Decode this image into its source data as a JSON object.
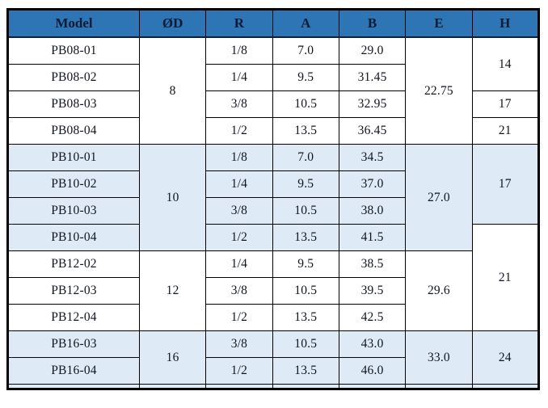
{
  "table": {
    "headers": [
      "Model",
      "ØD",
      "R",
      "A",
      "B",
      "E",
      "H"
    ],
    "column_keys": [
      "model",
      "od",
      "r",
      "a",
      "b",
      "e",
      "h"
    ],
    "rows": [
      {
        "theme": "white",
        "cells": [
          {
            "col": "model",
            "text": "PB08-01"
          },
          {
            "col": "od",
            "text": "8",
            "rowspan": 4
          },
          {
            "col": "r",
            "text": "1/8"
          },
          {
            "col": "a",
            "text": "7.0"
          },
          {
            "col": "b",
            "text": "29.0"
          },
          {
            "col": "e",
            "text": "22.75",
            "rowspan": 4
          },
          {
            "col": "h",
            "text": "14",
            "rowspan": 2
          }
        ]
      },
      {
        "theme": "white",
        "cells": [
          {
            "col": "model",
            "text": "PB08-02"
          },
          {
            "col": "r",
            "text": "1/4"
          },
          {
            "col": "a",
            "text": "9.5"
          },
          {
            "col": "b",
            "text": "31.45"
          }
        ]
      },
      {
        "theme": "white",
        "cells": [
          {
            "col": "model",
            "text": "PB08-03"
          },
          {
            "col": "r",
            "text": "3/8"
          },
          {
            "col": "a",
            "text": "10.5"
          },
          {
            "col": "b",
            "text": "32.95"
          },
          {
            "col": "h",
            "text": "17"
          }
        ]
      },
      {
        "theme": "white",
        "cells": [
          {
            "col": "model",
            "text": "PB08-04"
          },
          {
            "col": "r",
            "text": "1/2"
          },
          {
            "col": "a",
            "text": "13.5"
          },
          {
            "col": "b",
            "text": "36.45"
          },
          {
            "col": "h",
            "text": "21"
          }
        ]
      },
      {
        "theme": "blue",
        "cells": [
          {
            "col": "model",
            "text": "PB10-01"
          },
          {
            "col": "od",
            "text": "10",
            "rowspan": 4
          },
          {
            "col": "r",
            "text": "1/8"
          },
          {
            "col": "a",
            "text": "7.0"
          },
          {
            "col": "b",
            "text": "34.5"
          },
          {
            "col": "e",
            "text": "27.0",
            "rowspan": 4
          },
          {
            "col": "h",
            "text": "17",
            "rowspan": 3
          }
        ]
      },
      {
        "theme": "blue",
        "cells": [
          {
            "col": "model",
            "text": "PB10-02"
          },
          {
            "col": "r",
            "text": "1/4"
          },
          {
            "col": "a",
            "text": "9.5"
          },
          {
            "col": "b",
            "text": "37.0"
          }
        ]
      },
      {
        "theme": "blue",
        "cells": [
          {
            "col": "model",
            "text": "PB10-03"
          },
          {
            "col": "r",
            "text": "3/8"
          },
          {
            "col": "a",
            "text": "10.5"
          },
          {
            "col": "b",
            "text": "38.0"
          }
        ]
      },
      {
        "theme": "blue",
        "cells": [
          {
            "col": "model",
            "text": "PB10-04"
          },
          {
            "col": "r",
            "text": "1/2"
          },
          {
            "col": "a",
            "text": "13.5"
          },
          {
            "col": "b",
            "text": "41.5"
          },
          {
            "col": "h",
            "text": "21",
            "rowspan": 4,
            "theme": "white"
          }
        ]
      },
      {
        "theme": "white",
        "cells": [
          {
            "col": "model",
            "text": "PB12-02"
          },
          {
            "col": "od",
            "text": "12",
            "rowspan": 3
          },
          {
            "col": "r",
            "text": "1/4"
          },
          {
            "col": "a",
            "text": "9.5"
          },
          {
            "col": "b",
            "text": "38.5"
          },
          {
            "col": "e",
            "text": "29.6",
            "rowspan": 3
          }
        ]
      },
      {
        "theme": "white",
        "cells": [
          {
            "col": "model",
            "text": "PB12-03"
          },
          {
            "col": "r",
            "text": "3/8"
          },
          {
            "col": "a",
            "text": "10.5"
          },
          {
            "col": "b",
            "text": "39.5"
          }
        ]
      },
      {
        "theme": "white",
        "cells": [
          {
            "col": "model",
            "text": "PB12-04"
          },
          {
            "col": "r",
            "text": "1/2"
          },
          {
            "col": "a",
            "text": "13.5"
          },
          {
            "col": "b",
            "text": "42.5"
          }
        ]
      },
      {
        "theme": "blue",
        "cells": [
          {
            "col": "model",
            "text": "PB16-03"
          },
          {
            "col": "od",
            "text": "16",
            "rowspan": 2
          },
          {
            "col": "r",
            "text": "3/8"
          },
          {
            "col": "a",
            "text": "10.5"
          },
          {
            "col": "b",
            "text": "43.0"
          },
          {
            "col": "e",
            "text": "33.0",
            "rowspan": 2
          },
          {
            "col": "h",
            "text": "24",
            "rowspan": 2
          }
        ]
      },
      {
        "theme": "blue",
        "cells": [
          {
            "col": "model",
            "text": "PB16-04"
          },
          {
            "col": "r",
            "text": "1/2"
          },
          {
            "col": "a",
            "text": "13.5"
          },
          {
            "col": "b",
            "text": "46.0"
          }
        ]
      },
      {
        "theme": "blue",
        "spacer": true,
        "cells": [
          {
            "col": "model",
            "text": ""
          },
          {
            "col": "od",
            "text": ""
          },
          {
            "col": "r",
            "text": ""
          },
          {
            "col": "a",
            "text": ""
          },
          {
            "col": "b",
            "text": ""
          },
          {
            "col": "e",
            "text": ""
          },
          {
            "col": "h",
            "text": ""
          }
        ]
      }
    ]
  },
  "colors": {
    "header_bg": "#2e75b6",
    "header_text": "#0d1b33",
    "band_blue": "#deebf7",
    "band_white": "#ffffff",
    "body_text": "#10151f",
    "border": "#000000"
  }
}
